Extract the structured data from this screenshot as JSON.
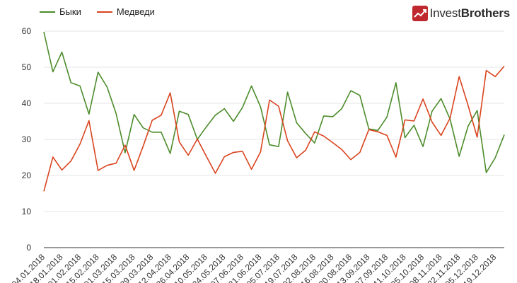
{
  "logo": {
    "text_a": "Invest",
    "text_b": "Brothers"
  },
  "chart_data": {
    "type": "line",
    "title": "",
    "xlabel": "",
    "ylabel": "",
    "ylim": [
      0,
      60
    ],
    "yticks": [
      0,
      10,
      20,
      30,
      40,
      50,
      60
    ],
    "grid": true,
    "legend_position": "top-left",
    "x_tick_labels": [
      "04.01.2018",
      "18.01.2018",
      "01.02.2018",
      "15.02.2018",
      "01.03.2018",
      "15.03.2018",
      "29.03.2018",
      "12.04.2018",
      "26.04.2018",
      "10.05.2018",
      "24.05.2018",
      "07.06.2018",
      "21.06.2018",
      "05.07.2018",
      "19.07.2018",
      "02.08.2018",
      "16.08.2018",
      "30.08.2018",
      "13.09.2018",
      "27.09.2018",
      "11.10.2018",
      "25.10.2018",
      "08.11.2018",
      "22.11.2018",
      "05.12.2018",
      "19.12.2018"
    ],
    "series": [
      {
        "name": "Быки",
        "color": "#4c8c2b",
        "values": [
          59.8,
          48.7,
          54.2,
          45.7,
          44.8,
          37.0,
          48.6,
          44.5,
          37.2,
          26.3,
          36.9,
          33.2,
          32.0,
          32.0,
          26.1,
          37.8,
          36.9,
          30.0,
          33.5,
          36.7,
          38.5,
          35.0,
          38.8,
          44.8,
          39.0,
          28.5,
          28.0,
          43.1,
          34.6,
          31.6,
          29.0,
          36.5,
          36.3,
          38.5,
          43.5,
          42.2,
          32.9,
          32.5,
          36.2,
          45.7,
          30.5,
          33.9,
          28.0,
          37.8,
          41.3,
          35.6,
          25.3,
          33.7,
          38.0,
          20.8,
          24.9,
          31.3
        ]
      },
      {
        "name": "Медведи",
        "color": "#d9441f",
        "values": [
          15.6,
          25.1,
          21.5,
          24.0,
          28.7,
          35.2,
          21.4,
          22.8,
          23.4,
          28.4,
          21.4,
          28.1,
          35.3,
          36.7,
          42.9,
          29.3,
          25.6,
          30.1,
          25.3,
          20.6,
          25.2,
          26.4,
          26.7,
          21.7,
          26.5,
          40.9,
          39.2,
          29.6,
          24.9,
          27.0,
          32.1,
          30.9,
          29.1,
          27.2,
          24.4,
          26.4,
          32.7,
          32.1,
          31.1,
          25.1,
          35.4,
          35.1,
          41.2,
          34.8,
          31.1,
          35.9,
          47.4,
          39.4,
          30.6,
          49.1,
          47.4,
          50.3
        ]
      }
    ]
  }
}
